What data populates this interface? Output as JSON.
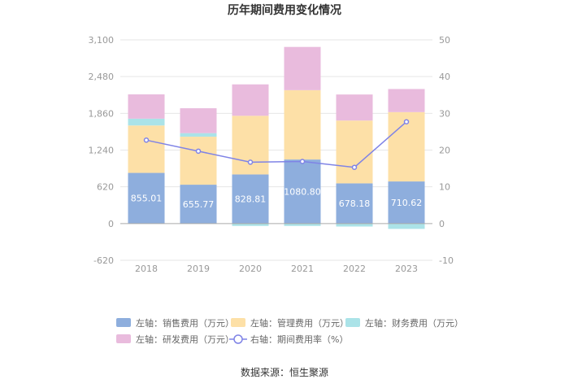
{
  "chart_data": {
    "type": "bar",
    "title": "历年期间费用变化情况",
    "source": "数据来源：恒生聚源",
    "categories": [
      "2018",
      "2019",
      "2020",
      "2021",
      "2022",
      "2023"
    ],
    "left_axis": {
      "ylim": [
        -620,
        3100
      ],
      "ticks": [
        "3,100",
        "2,480",
        "1,860",
        "1,240",
        "620",
        "0",
        "-620"
      ],
      "tick_values": [
        3100,
        2480,
        1860,
        1240,
        620,
        0,
        -620
      ]
    },
    "right_axis": {
      "ylim": [
        -10,
        50
      ],
      "ticks": [
        "50",
        "40",
        "30",
        "20",
        "10",
        "0",
        "-10"
      ],
      "tick_values": [
        50,
        40,
        30,
        20,
        10,
        0,
        -10
      ]
    },
    "series": [
      {
        "name": "左轴：销售费用（万元）",
        "type": "bar",
        "axis": "left",
        "color": "#8eaedd",
        "values": [
          855.01,
          655.77,
          828.81,
          1080.8,
          678.18,
          710.62
        ],
        "labels": [
          "855.01",
          "655.77",
          "828.81",
          "1080.80",
          "678.18",
          "710.62"
        ]
      },
      {
        "name": "左轴：管理费用（万元）",
        "type": "bar",
        "axis": "left",
        "color": "#fde0a7",
        "values": [
          800,
          810,
          990,
          1170,
          1060,
          1170
        ]
      },
      {
        "name": "左轴：财务费用（万元）",
        "type": "bar",
        "axis": "left",
        "color": "#abe3e8",
        "values": [
          115,
          60,
          -40,
          -40,
          -50,
          -90
        ]
      },
      {
        "name": "左轴：研发费用（万元）",
        "type": "bar",
        "axis": "left",
        "color": "#e9bbdd",
        "values": [
          410,
          420,
          530,
          730,
          440,
          390
        ]
      },
      {
        "name": "右轴：期间费用率（%）",
        "type": "line",
        "axis": "right",
        "color": "#7f83e6",
        "values": [
          22.7,
          19.7,
          16.7,
          16.9,
          15.3,
          27.7
        ]
      }
    ]
  }
}
